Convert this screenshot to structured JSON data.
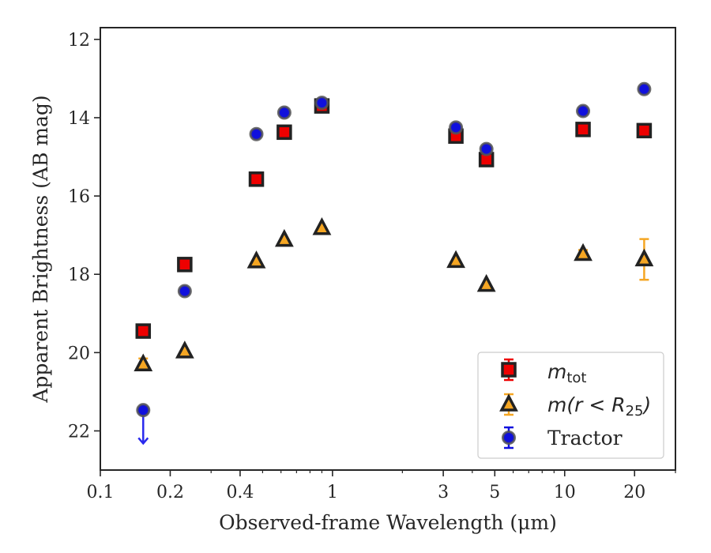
{
  "chart_data": {
    "type": "scatter",
    "title": "",
    "xlabel": "Observed-frame Wavelength (μm)",
    "ylabel": "Apparent Brightness (AB mag)",
    "xscale": "log",
    "xlim": [
      0.1,
      30
    ],
    "ylim": [
      23,
      11.7
    ],
    "y_inverted": true,
    "grid": false,
    "legend_position": "lower-right",
    "x_ticks": [
      0.1,
      0.2,
      0.4,
      1,
      3,
      5,
      10,
      20
    ],
    "x_tick_labels": [
      "0.1",
      "0.2",
      "0.4",
      "1",
      "3",
      "5",
      "10",
      "20"
    ],
    "y_ticks": [
      12,
      14,
      16,
      18,
      20,
      22
    ],
    "y_tick_labels": [
      "12",
      "14",
      "16",
      "18",
      "20",
      "22"
    ],
    "series": [
      {
        "name": "m_tot",
        "marker": "square",
        "color": "#ee0000",
        "edge_color": "#222222",
        "points": [
          {
            "x": 0.153,
            "y": 19.45,
            "err": 0.0
          },
          {
            "x": 0.231,
            "y": 17.75,
            "err": 0.0
          },
          {
            "x": 0.47,
            "y": 15.57,
            "err": 0.0
          },
          {
            "x": 0.62,
            "y": 14.37,
            "err": 0.0
          },
          {
            "x": 0.9,
            "y": 13.7,
            "err": 0.1
          },
          {
            "x": 3.4,
            "y": 14.47,
            "err": 0.0
          },
          {
            "x": 4.6,
            "y": 15.07,
            "err": 0.0
          },
          {
            "x": 12.0,
            "y": 14.3,
            "err": 0.0
          },
          {
            "x": 22.0,
            "y": 14.33,
            "err": 0.0
          }
        ]
      },
      {
        "name": "m(r < R_25)",
        "marker": "triangle",
        "color": "#f5a623",
        "edge_color": "#222222",
        "points": [
          {
            "x": 0.153,
            "y": 20.3,
            "err": 0.15
          },
          {
            "x": 0.231,
            "y": 19.97,
            "err": 0.0
          },
          {
            "x": 0.47,
            "y": 17.67,
            "err": 0.0
          },
          {
            "x": 0.62,
            "y": 17.12,
            "err": 0.0
          },
          {
            "x": 0.9,
            "y": 16.82,
            "err": 0.0
          },
          {
            "x": 3.4,
            "y": 17.66,
            "err": 0.0
          },
          {
            "x": 4.6,
            "y": 18.27,
            "err": 0.0
          },
          {
            "x": 12.0,
            "y": 17.48,
            "err": 0.1
          },
          {
            "x": 22.0,
            "y": 17.62,
            "err": 0.52
          }
        ]
      },
      {
        "name": "Tractor",
        "marker": "circle",
        "color": "#1010dd",
        "edge_color": "#555555",
        "points": [
          {
            "x": 0.153,
            "y": 21.47,
            "err": 0.0,
            "upper_limit": true
          },
          {
            "x": 0.231,
            "y": 18.43,
            "err": 0.0
          },
          {
            "x": 0.47,
            "y": 14.42,
            "err": 0.0
          },
          {
            "x": 0.62,
            "y": 13.87,
            "err": 0.0
          },
          {
            "x": 0.9,
            "y": 13.62,
            "err": 0.0
          },
          {
            "x": 3.4,
            "y": 14.25,
            "err": 0.0
          },
          {
            "x": 4.6,
            "y": 14.8,
            "err": 0.0
          },
          {
            "x": 12.0,
            "y": 13.83,
            "err": 0.0
          },
          {
            "x": 22.0,
            "y": 13.27,
            "err": 0.0
          }
        ]
      }
    ],
    "legend": {
      "entries": [
        {
          "base": "m",
          "sub": "tot",
          "rest": ""
        },
        {
          "base": "m",
          "sub": "",
          "rest": "(r < R",
          "sub2": "25",
          "tail": ")"
        },
        {
          "text": "Tractor"
        }
      ]
    }
  }
}
